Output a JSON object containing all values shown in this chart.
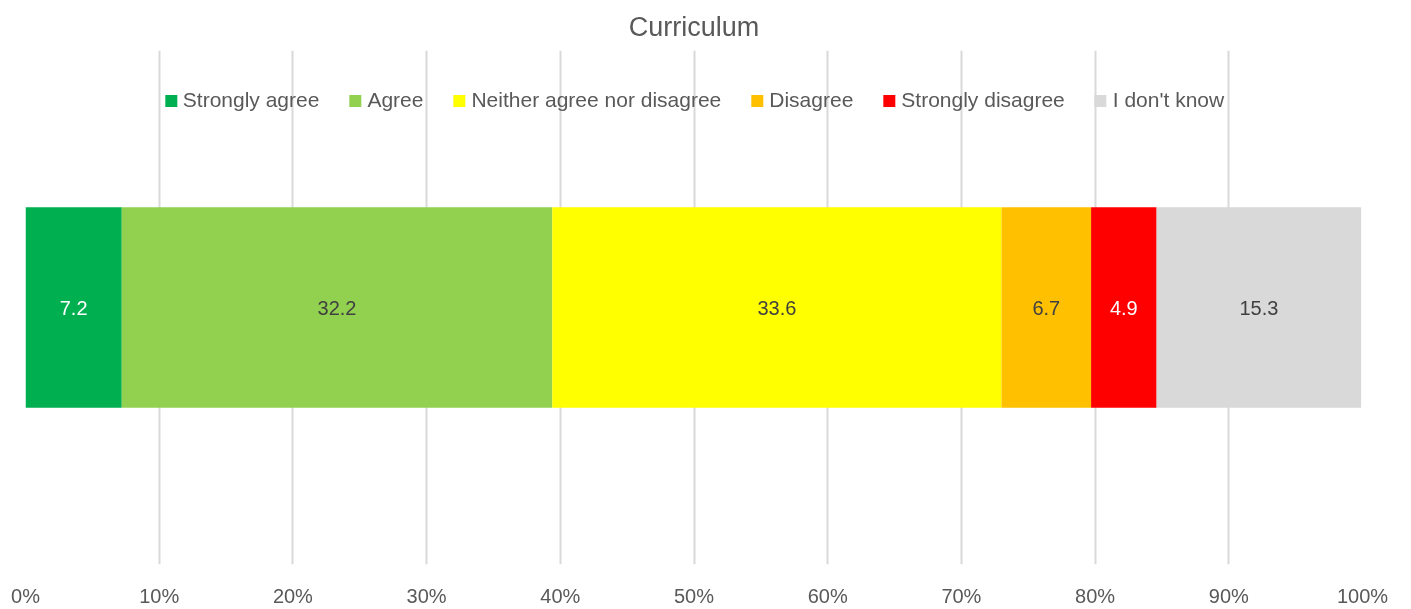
{
  "chart_data": {
    "type": "bar",
    "title": "Curriculum",
    "orientation": "horizontal",
    "stacked": true,
    "categories": [
      null
    ],
    "series": [
      {
        "name": "Strongly agree",
        "color": "#00b050",
        "values": [
          7.2
        ]
      },
      {
        "name": "Agree",
        "color": "#92d050",
        "values": [
          32.2
        ]
      },
      {
        "name": "Neither agree nor disagree",
        "color": "#ffff00",
        "values": [
          33.6
        ]
      },
      {
        "name": "Disagree",
        "color": "#ffc000",
        "values": [
          6.7
        ]
      },
      {
        "name": "Strongly disagree",
        "color": "#ff0000",
        "values": [
          4.9
        ]
      },
      {
        "name": "I don't know",
        "color": "#d9d9d9",
        "values": [
          15.3
        ]
      }
    ],
    "data_labels": true,
    "xlim": [
      0,
      100
    ],
    "xticks": [
      {
        "value": 0,
        "label": "0%"
      },
      {
        "value": 10,
        "label": "10%"
      },
      {
        "value": 20,
        "label": "20%"
      },
      {
        "value": 30,
        "label": "30%"
      },
      {
        "value": 40,
        "label": "40%"
      },
      {
        "value": 50,
        "label": "50%"
      },
      {
        "value": 60,
        "label": "60%"
      },
      {
        "value": 70,
        "label": "70%"
      },
      {
        "value": 80,
        "label": "80%"
      },
      {
        "value": 90,
        "label": "90%"
      },
      {
        "value": 100,
        "label": "100%"
      }
    ],
    "grid": "x",
    "legend": "top",
    "tick_labels": "x"
  }
}
